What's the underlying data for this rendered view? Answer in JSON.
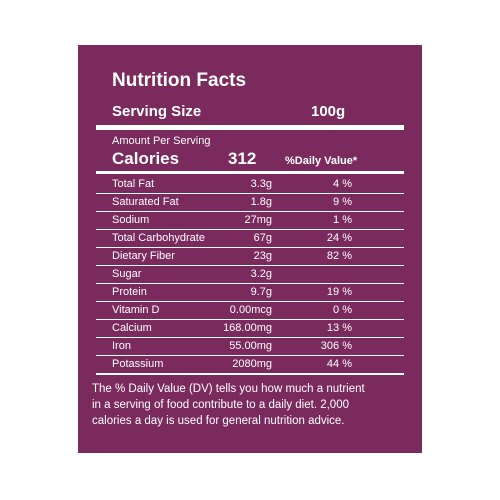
{
  "title": "Nutrition Facts",
  "serving": {
    "label": "Serving Size",
    "value": "100g"
  },
  "amount_per_serving": "Amount Per Serving",
  "calories": {
    "label": "Calories",
    "value": "312"
  },
  "daily_value_header": "%Daily Value*",
  "rows": [
    {
      "name": "Total Fat",
      "amount": "3.3g",
      "dv": "4 %"
    },
    {
      "name": "Saturated Fat",
      "amount": "1.8g",
      "dv": "9 %"
    },
    {
      "name": "Sodium",
      "amount": "27mg",
      "dv": "1 %"
    },
    {
      "name": "Total Carbohydrate",
      "amount": "67g",
      "dv": "24 %"
    },
    {
      "name": "Dietary Fiber",
      "amount": "23g",
      "dv": "82 %"
    },
    {
      "name": "Sugar",
      "amount": "3.2g"
    },
    {
      "name": "Protein",
      "amount": "9.7g",
      "dv": "19 %"
    },
    {
      "name": "Vitamin D",
      "amount": "0.00mcg",
      "dv": "0 %"
    },
    {
      "name": "Calcium",
      "amount": "168.00mg",
      "dv": "13 %"
    },
    {
      "name": "Iron",
      "amount": "55.00mg",
      "dv": "306 %"
    },
    {
      "name": "Potassium",
      "amount": "2080mg",
      "dv": "44 %"
    }
  ],
  "footnote": [
    "The % Daily Value (DV) tells you how much a nutrient",
    "in a serving of food contribute to a daily diet. 2,000",
    "calories a day is used for general nutrition advice."
  ]
}
